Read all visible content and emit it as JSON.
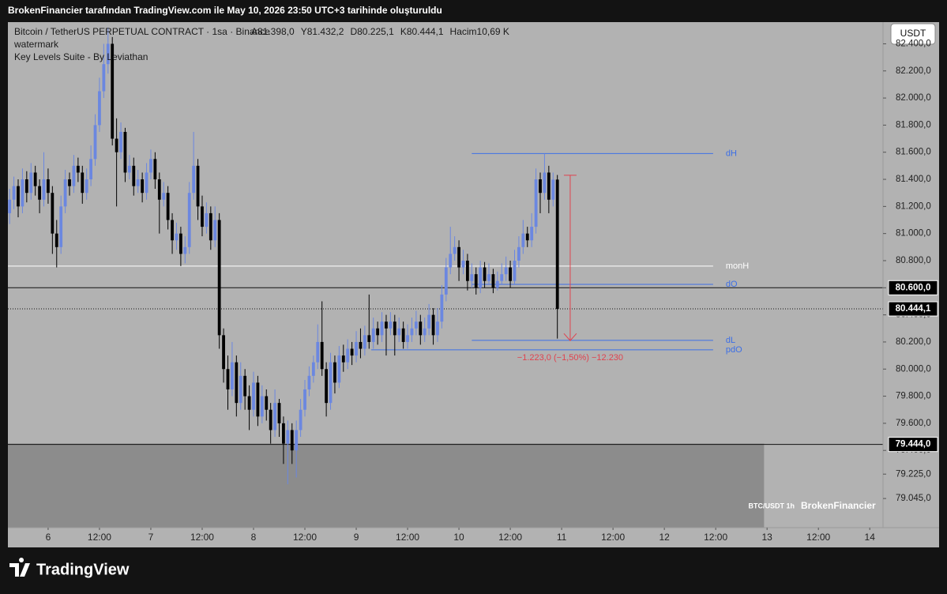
{
  "header": {
    "text": "BrokenFinancier tarafından TradingView.com ile May 10, 2026 23:50 UTC+3 tarihinde oluşturuldu"
  },
  "footer": {
    "brand": "TradingView"
  },
  "chart_data": {
    "type": "candlestick",
    "title": "Bitcoin / TetherUS PERPETUAL CONTRACT · 1sa · Binance",
    "ohlc_labels": [
      "A81.398,0",
      "Y81.432,2",
      "D80.225,1",
      "K80.444,1"
    ],
    "volume_label": "Hacim10,69 K",
    "indicators": [
      "watermark",
      "Key Levels Suite - By Leviathan"
    ],
    "currency_button": "USDT",
    "watermark": [
      "BTC/USDT 1h",
      "BrokenFinancier"
    ],
    "up_color": "#6b87e0",
    "down_color": "#000000",
    "xlim": [
      -9.4,
      195.1
    ],
    "xticks": [
      {
        "value": 0,
        "label": "6"
      },
      {
        "value": 12,
        "label": "12:00"
      },
      {
        "value": 24,
        "label": "7"
      },
      {
        "value": 36,
        "label": "12:00"
      },
      {
        "value": 48,
        "label": "8"
      },
      {
        "value": 60,
        "label": "12:00"
      },
      {
        "value": 72,
        "label": "9"
      },
      {
        "value": 84,
        "label": "12:00"
      },
      {
        "value": 96,
        "label": "10"
      },
      {
        "value": 108,
        "label": "12:00"
      },
      {
        "value": 120,
        "label": "11"
      },
      {
        "value": 132,
        "label": "12:00"
      },
      {
        "value": 144,
        "label": "12"
      },
      {
        "value": 156,
        "label": "12:00"
      },
      {
        "value": 168,
        "label": "13"
      },
      {
        "value": 180,
        "label": "12:00"
      },
      {
        "value": 192,
        "label": "14"
      }
    ],
    "ylim": [
      78830,
      82560
    ],
    "yticks": [
      {
        "value": 82400,
        "label": "82.400,0"
      },
      {
        "value": 82200,
        "label": "82.200,0"
      },
      {
        "value": 82000,
        "label": "82.000,0"
      },
      {
        "value": 81800,
        "label": "81.800,0"
      },
      {
        "value": 81600,
        "label": "81.600,0"
      },
      {
        "value": 81400,
        "label": "81.400,0"
      },
      {
        "value": 81200,
        "label": "81.200,0"
      },
      {
        "value": 81000,
        "label": "81.000,0"
      },
      {
        "value": 80800,
        "label": "80.800,0"
      },
      {
        "value": 80600,
        "label": "80.600,0"
      },
      {
        "value": 80400,
        "label": "80.400,0"
      },
      {
        "value": 80200,
        "label": "80.200,0"
      },
      {
        "value": 80000,
        "label": "80.000,0"
      },
      {
        "value": 79800,
        "label": "79.800,0"
      },
      {
        "value": 79600,
        "label": "79.600,0"
      },
      {
        "value": 79400,
        "label": "79.400,0"
      },
      {
        "value": 79225,
        "label": "79.225,0"
      },
      {
        "value": 79045,
        "label": "79.045,0"
      }
    ],
    "x": [
      -9,
      -8,
      -7,
      -6,
      -5,
      -4,
      -3,
      -2,
      -1,
      0,
      1,
      2,
      3,
      4,
      5,
      6,
      7,
      8,
      9,
      10,
      11,
      12,
      13,
      14,
      15,
      16,
      17,
      18,
      19,
      20,
      21,
      22,
      23,
      24,
      25,
      26,
      27,
      28,
      29,
      30,
      31,
      32,
      33,
      34,
      35,
      36,
      37,
      38,
      39,
      40,
      41,
      42,
      43,
      44,
      45,
      46,
      47,
      48,
      49,
      50,
      51,
      52,
      53,
      54,
      55,
      56,
      57,
      58,
      59,
      60,
      61,
      62,
      63,
      64,
      65,
      66,
      67,
      68,
      69,
      70,
      71,
      72,
      73,
      74,
      75,
      76,
      77,
      78,
      79,
      80,
      81,
      82,
      83,
      84,
      85,
      86,
      87,
      88,
      89,
      90,
      91,
      92,
      93,
      94,
      95,
      96,
      97,
      98,
      99,
      100,
      101,
      102,
      103,
      104,
      105,
      106,
      107,
      108,
      109,
      110,
      111,
      112,
      113,
      114,
      115,
      116,
      117,
      118,
      119
    ],
    "candles": [
      [
        81150,
        81330,
        81070,
        81250
      ],
      [
        81250,
        81420,
        81180,
        81350
      ],
      [
        81350,
        81400,
        81120,
        81200
      ],
      [
        81200,
        81480,
        81150,
        81400
      ],
      [
        81400,
        81460,
        81230,
        81300
      ],
      [
        81300,
        81520,
        81250,
        81450
      ],
      [
        81450,
        81500,
        81280,
        81350
      ],
      [
        81350,
        81400,
        81150,
        81250
      ],
      [
        81250,
        81600,
        81200,
        81400
      ],
      [
        81400,
        81480,
        81220,
        81300
      ],
      [
        81300,
        81350,
        80850,
        81000
      ],
      [
        81000,
        81100,
        80750,
        80900
      ],
      [
        80900,
        81280,
        80850,
        81200
      ],
      [
        81200,
        81470,
        81150,
        81400
      ],
      [
        81400,
        81450,
        81280,
        81350
      ],
      [
        81350,
        81580,
        81300,
        81500
      ],
      [
        81500,
        81560,
        81380,
        81450
      ],
      [
        81450,
        81500,
        81220,
        81300
      ],
      [
        81300,
        81480,
        81250,
        81400
      ],
      [
        81400,
        81650,
        81350,
        81550
      ],
      [
        81550,
        81880,
        81500,
        81800
      ],
      [
        81800,
        82150,
        81750,
        82050
      ],
      [
        82050,
        82400,
        82000,
        82250
      ],
      [
        82250,
        82520,
        82180,
        82400
      ],
      [
        82400,
        82450,
        81650,
        81700
      ],
      [
        81700,
        81850,
        81200,
        81600
      ],
      [
        81600,
        81820,
        81550,
        81750
      ],
      [
        81750,
        81780,
        81380,
        81450
      ],
      [
        81450,
        81580,
        81400,
        81500
      ],
      [
        81500,
        81560,
        81280,
        81350
      ],
      [
        81350,
        81470,
        81300,
        81400
      ],
      [
        81400,
        81450,
        81230,
        81300
      ],
      [
        81300,
        81520,
        81250,
        81450
      ],
      [
        81450,
        81620,
        81400,
        81550
      ],
      [
        81550,
        81600,
        81330,
        81400
      ],
      [
        81400,
        81450,
        81000,
        81250
      ],
      [
        81250,
        81380,
        81200,
        81300
      ],
      [
        81300,
        81350,
        81030,
        81100
      ],
      [
        81100,
        81150,
        80850,
        80950
      ],
      [
        80950,
        81080,
        80880,
        81000
      ],
      [
        81000,
        81050,
        80760,
        80850
      ],
      [
        80850,
        80980,
        80780,
        80900
      ],
      [
        80900,
        81380,
        80850,
        81300
      ],
      [
        81300,
        81750,
        81250,
        81500
      ],
      [
        81500,
        81550,
        81100,
        81200
      ],
      [
        81200,
        81280,
        80980,
        81050
      ],
      [
        81050,
        81230,
        81000,
        81150
      ],
      [
        81150,
        81200,
        80880,
        80950
      ],
      [
        80950,
        81200,
        80900,
        81100
      ],
      [
        81100,
        81150,
        80150,
        80250
      ],
      [
        80250,
        80300,
        79900,
        80000
      ],
      [
        80000,
        80100,
        79700,
        79850
      ],
      [
        79850,
        80200,
        79800,
        80050
      ],
      [
        80050,
        80100,
        79650,
        79750
      ],
      [
        79750,
        80050,
        79700,
        79950
      ],
      [
        79950,
        80000,
        79700,
        79800
      ],
      [
        79800,
        79880,
        79550,
        79700
      ],
      [
        79700,
        79980,
        79650,
        79900
      ],
      [
        79900,
        79950,
        79580,
        79650
      ],
      [
        79650,
        79880,
        79600,
        79800
      ],
      [
        79800,
        79850,
        79620,
        79700
      ],
      [
        79700,
        79750,
        79450,
        79550
      ],
      [
        79550,
        79850,
        79500,
        79750
      ],
      [
        79750,
        79780,
        79500,
        79600
      ],
      [
        79600,
        79650,
        79300,
        79450
      ],
      [
        79450,
        79620,
        79150,
        79550
      ],
      [
        79550,
        79600,
        79300,
        79400
      ],
      [
        79400,
        79620,
        79200,
        79550
      ],
      [
        79550,
        79780,
        79500,
        79700
      ],
      [
        79700,
        79920,
        79650,
        79850
      ],
      [
        79850,
        80020,
        79800,
        79950
      ],
      [
        79950,
        80100,
        79900,
        80050
      ],
      [
        80050,
        80330,
        80000,
        80200
      ],
      [
        80200,
        80500,
        79950,
        80000
      ],
      [
        80000,
        80050,
        79650,
        79750
      ],
      [
        79750,
        80120,
        79700,
        80050
      ],
      [
        80050,
        80100,
        79820,
        79900
      ],
      [
        79900,
        80170,
        79860,
        80100
      ],
      [
        80100,
        80180,
        79980,
        80050
      ],
      [
        80050,
        80220,
        80000,
        80150
      ],
      [
        80150,
        80200,
        80030,
        80100
      ],
      [
        80100,
        80280,
        80050,
        80200
      ],
      [
        80200,
        80300,
        80080,
        80150
      ],
      [
        80150,
        80320,
        80100,
        80250
      ],
      [
        80250,
        80550,
        80150,
        80200
      ],
      [
        80200,
        80380,
        80150,
        80300
      ],
      [
        80300,
        80350,
        80180,
        80250
      ],
      [
        80250,
        80420,
        80200,
        80350
      ],
      [
        80350,
        80400,
        80100,
        80300
      ],
      [
        80300,
        80420,
        80250,
        80350
      ],
      [
        80350,
        80400,
        80100,
        80250
      ],
      [
        80250,
        80380,
        80200,
        80300
      ],
      [
        80300,
        80350,
        80150,
        80200
      ],
      [
        80200,
        80330,
        80150,
        80250
      ],
      [
        80250,
        80380,
        80200,
        80300
      ],
      [
        80300,
        80430,
        80250,
        80350
      ],
      [
        80350,
        80400,
        80180,
        80250
      ],
      [
        80250,
        80380,
        80200,
        80300
      ],
      [
        80300,
        80480,
        80250,
        80400
      ],
      [
        80400,
        80450,
        80180,
        80250
      ],
      [
        80250,
        80450,
        80200,
        80350
      ],
      [
        80350,
        80620,
        80300,
        80550
      ],
      [
        80550,
        80820,
        80500,
        80750
      ],
      [
        80750,
        81050,
        80700,
        80850
      ],
      [
        80850,
        80980,
        80800,
        80900
      ],
      [
        80900,
        80950,
        80650,
        80750
      ],
      [
        80750,
        80880,
        80700,
        80800
      ],
      [
        80800,
        80850,
        80580,
        80650
      ],
      [
        80650,
        80780,
        80600,
        80700
      ],
      [
        80700,
        80750,
        80550,
        80600
      ],
      [
        80600,
        80800,
        80560,
        80750
      ],
      [
        80750,
        80790,
        80600,
        80650
      ],
      [
        80650,
        80780,
        80620,
        80700
      ],
      [
        80700,
        80740,
        80560,
        80600
      ],
      [
        80600,
        80720,
        80580,
        80650
      ],
      [
        80650,
        80780,
        80620,
        80700
      ],
      [
        80700,
        80830,
        80650,
        80750
      ],
      [
        80750,
        80800,
        80600,
        80650
      ],
      [
        80650,
        80880,
        80620,
        80800
      ],
      [
        80800,
        80980,
        80750,
        80900
      ],
      [
        80900,
        81100,
        80850,
        81000
      ],
      [
        81000,
        81050,
        80900,
        80950
      ],
      [
        80950,
        81150,
        80900,
        81050
      ],
      [
        81050,
        81480,
        81000,
        81400
      ],
      [
        81400,
        81450,
        81150,
        81300
      ],
      [
        81300,
        81590,
        81250,
        81450
      ],
      [
        81450,
        81500,
        81150,
        81250
      ],
      [
        81250,
        81450,
        81200,
        81398
      ],
      [
        81398,
        81432.2,
        80225.1,
        80444.1
      ]
    ],
    "levels": [
      {
        "name": "dH",
        "value": 81590,
        "xrange": [
          99,
          155.4
        ],
        "color": "#3d6fe6"
      },
      {
        "name": "monH",
        "value": 80760,
        "xrange": [
          -9.4,
          155.4
        ],
        "color": "#ffffff"
      },
      {
        "name": "dO",
        "value": 80625,
        "xrange": [
          99,
          155.4
        ],
        "color": "#3d6fe6"
      },
      {
        "name": "dL",
        "value": 80212,
        "xrange": [
          99,
          155.4
        ],
        "color": "#3d6fe6"
      },
      {
        "name": "pdO",
        "value": 80142,
        "xrange": [
          75.5,
          155.4
        ],
        "color": "#3d6fe6"
      }
    ],
    "price_labels": [
      {
        "value": 80600,
        "label": "80.600,0",
        "style": "solid"
      },
      {
        "value": 80444.1,
        "label": "80.444,1",
        "style": "dotted"
      },
      {
        "value": 79444,
        "label": "79.444,0",
        "style": "solid"
      }
    ],
    "zone": {
      "range": [
        78830,
        79450
      ],
      "xrange": [
        -9.4,
        167.3
      ],
      "color": "#8c8c8c"
    },
    "measure": {
      "from": 81430,
      "to": 80210,
      "x": 122,
      "label": "−1.223,0 (−1,50%) −12.230",
      "color": "#e0434f"
    }
  }
}
